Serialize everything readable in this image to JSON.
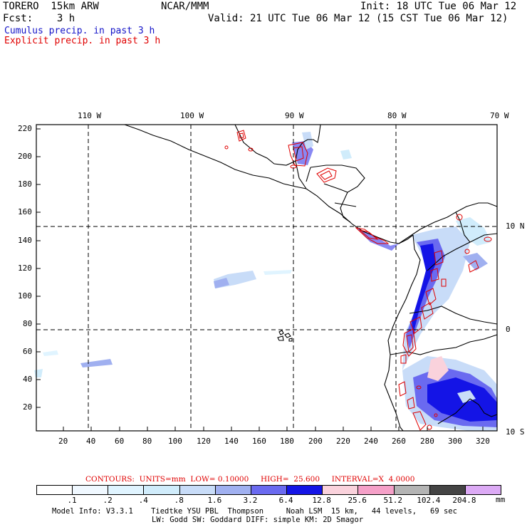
{
  "header": {
    "model": "TORERO  15km ARW",
    "center": "NCAR/MMM",
    "init": "Init: 18 UTC Tue 06 Mar 12",
    "fcst": "Fcst:    3 h",
    "valid": "Valid: 21 UTC Tue 06 Mar 12 (15 CST Tue 06 Mar 12)",
    "legend_cumulus": "Cumulus precip. in past 3 h",
    "legend_explicit": "Explicit precip. in past 3 h"
  },
  "colors": {
    "cumulus": "#1010c8",
    "explicit": "#e00000",
    "frame": "#000000"
  },
  "map": {
    "lon_labels": [
      "110 W",
      "100 W",
      "90 W",
      "80 W",
      "70 W"
    ],
    "lat_labels": [
      "10 N",
      "0",
      "10 S"
    ],
    "x_ticks": [
      "20",
      "40",
      "60",
      "80",
      "100",
      "120",
      "140",
      "160",
      "180",
      "200",
      "220",
      "240",
      "260",
      "280",
      "300",
      "320"
    ],
    "y_ticks": [
      "220",
      "200",
      "180",
      "160",
      "140",
      "120",
      "100",
      "80",
      "60",
      "40",
      "20"
    ]
  },
  "contour_info": {
    "label": "CONTOURS:  UNITS=mm  LOW= 0.10000     HIGH=  25.600     INTERVAL=X  4.0000"
  },
  "colorbar": {
    "labels": [
      ".1",
      ".2",
      ".4",
      ".8",
      "1.6",
      "3.2",
      "6.4",
      "12.8",
      "25.6",
      "51.2",
      "102.4",
      "204.8"
    ],
    "unit": "mm",
    "colors": [
      "#ffffff",
      "#f0f8ff",
      "#e0f4ff",
      "#d0ecfb",
      "#c8dcf8",
      "#a0b0f0",
      "#6a6af0",
      "#1414e6",
      "#fad2dc",
      "#f5a0c8",
      "#b4b4b4",
      "#444444",
      "#dcaaf5"
    ]
  },
  "footer": {
    "line1": "Model Info: V3.3.1    Tiedtke YSU PBL  Thompson     Noah LSM  15 km,   44 levels,   69 sec",
    "line2": "LW: Godd SW: Goddard DIFF: simple KM: 2D Smagor"
  }
}
